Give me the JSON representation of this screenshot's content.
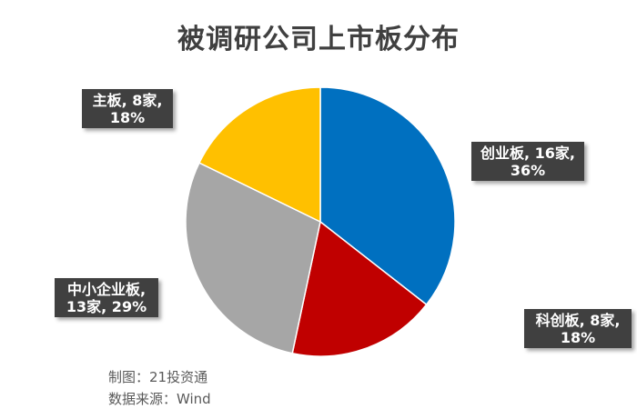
{
  "chart_data": {
    "type": "pie",
    "title": "被调研公司上市板分布",
    "slices": [
      {
        "name": "创业板",
        "count_label": "16家",
        "percent_label": "36%",
        "count": 16,
        "percent": 36,
        "color": "#0070C0"
      },
      {
        "name": "科创板",
        "count_label": "8家",
        "percent_label": "18%",
        "count": 8,
        "percent": 18,
        "color": "#C00000"
      },
      {
        "name": "中小企业板",
        "count_label": "13家",
        "percent_label": "29%",
        "count": 13,
        "percent": 29,
        "color": "#A6A6A6"
      },
      {
        "name": "主板",
        "count_label": "8家",
        "percent_label": "18%",
        "count": 8,
        "percent": 18,
        "color": "#FFC000"
      }
    ],
    "labels": [
      {
        "line1": "主板, 8家,",
        "line2": "18%"
      },
      {
        "line1": "创业板, 16家,",
        "line2": "36%"
      },
      {
        "line1": "中小企业板,",
        "line2": "13家, 29%"
      },
      {
        "line1": "科创板, 8家,",
        "line2": "18%"
      }
    ]
  },
  "footer": {
    "made_by": "制图：21投资通",
    "source": "数据来源：Wind"
  }
}
